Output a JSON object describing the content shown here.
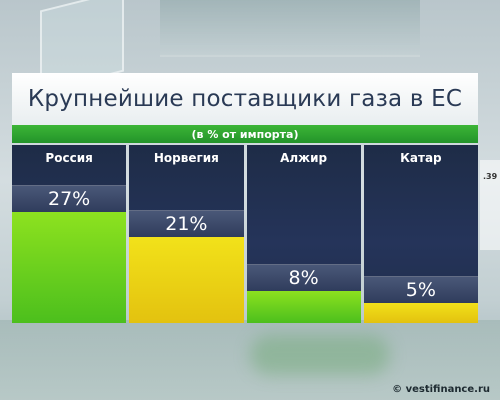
{
  "title": "Крупнейшие поставщики газа в ЕС",
  "subtitle": "(в % от импорта)",
  "side_fragment": ".39",
  "watermark": "© vestifinance.ru",
  "colors": {
    "green": "#5ccf1f",
    "yellow": "#f0d315",
    "panel": "#22304f",
    "subtitle_bar": "#2ea62f"
  },
  "chart_data": {
    "type": "bar",
    "title": "Крупнейшие поставщики газа в ЕС",
    "subtitle": "(в % от импорта)",
    "categories": [
      "Россия",
      "Норвегия",
      "Алжир",
      "Катар"
    ],
    "values": [
      27,
      21,
      8,
      5
    ],
    "value_labels": [
      "27%",
      "21%",
      "8%",
      "5%"
    ],
    "bar_colors": [
      "green",
      "yellow",
      "green",
      "yellow"
    ],
    "ylim": [
      0,
      27
    ]
  }
}
